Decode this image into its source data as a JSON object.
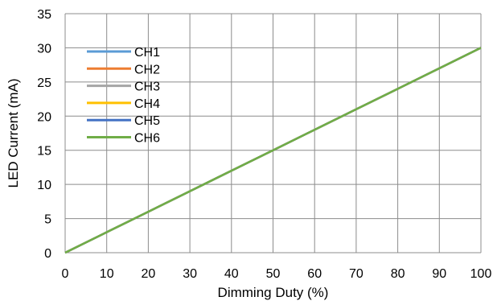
{
  "chart_data": {
    "type": "line",
    "title": "",
    "xlabel": "Dimming Duty (%)",
    "ylabel": "LED Current (mA)",
    "xlim": [
      0,
      100
    ],
    "ylim": [
      0,
      35
    ],
    "x_ticks": [
      0,
      10,
      20,
      30,
      40,
      50,
      60,
      70,
      80,
      90,
      100
    ],
    "y_ticks": [
      0,
      5,
      10,
      15,
      20,
      25,
      30,
      35
    ],
    "grid": true,
    "legend_position": "top-left",
    "x": [
      0,
      10,
      20,
      30,
      40,
      50,
      60,
      70,
      80,
      90,
      100
    ],
    "series": [
      {
        "name": "CH1",
        "color": "#5B9BD5",
        "values": [
          0,
          3,
          6,
          9,
          12,
          15,
          18,
          21,
          24,
          27,
          30
        ]
      },
      {
        "name": "CH2",
        "color": "#ED7D31",
        "values": [
          0,
          3,
          6,
          9,
          12,
          15,
          18,
          21,
          24,
          27,
          30
        ]
      },
      {
        "name": "CH3",
        "color": "#A5A5A5",
        "values": [
          0,
          3,
          6,
          9,
          12,
          15,
          18,
          21,
          24,
          27,
          30
        ]
      },
      {
        "name": "CH4",
        "color": "#FFC000",
        "values": [
          0,
          3,
          6,
          9,
          12,
          15,
          18,
          21,
          24,
          27,
          30
        ]
      },
      {
        "name": "CH5",
        "color": "#4472C4",
        "values": [
          0,
          3,
          6,
          9,
          12,
          15,
          18,
          21,
          24,
          27,
          30
        ]
      },
      {
        "name": "CH6",
        "color": "#70AD47",
        "values": [
          0,
          3,
          6,
          9,
          12,
          15,
          18,
          21,
          24,
          27,
          30
        ]
      }
    ]
  }
}
